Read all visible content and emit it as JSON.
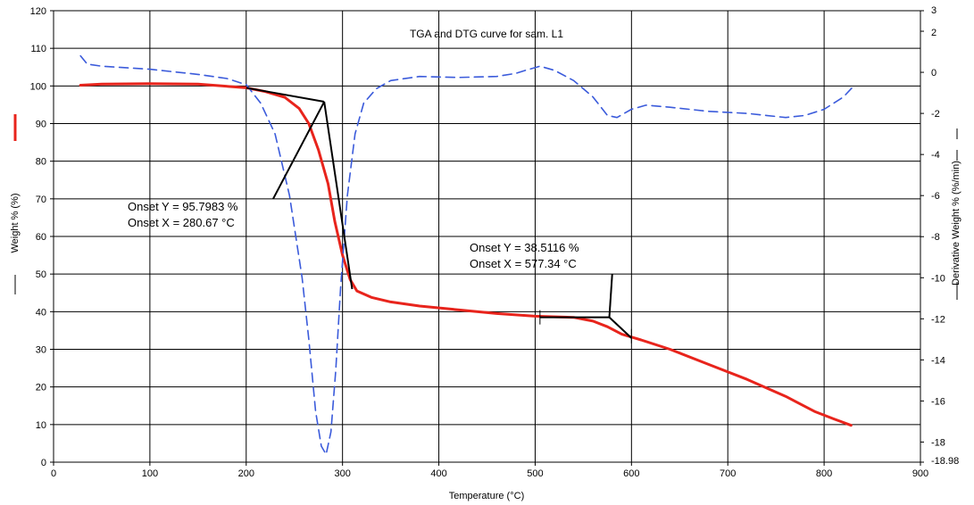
{
  "chart_data": {
    "type": "line",
    "title": "TGA and DTG curve for sam. L1",
    "xlabel": "Temperature (°C)",
    "ylabel": "Weight % (%)",
    "y2label": "Derivative Weight % (%/min)",
    "xlim": [
      0,
      900
    ],
    "ylim": [
      0,
      120
    ],
    "y2lim": [
      -18.98,
      3
    ],
    "x_ticks": [
      "0",
      "100",
      "200",
      "300",
      "400",
      "500",
      "600",
      "700",
      "800",
      "900"
    ],
    "y_ticks": [
      "0",
      "10",
      "20",
      "30",
      "40",
      "50",
      "60",
      "70",
      "80",
      "90",
      "100",
      "110",
      "120"
    ],
    "y2_ticks": [
      "3",
      "2",
      "0",
      "-2",
      "-4",
      "-6",
      "-8",
      "-10",
      "-12",
      "-14",
      "-16",
      "-18",
      "-18.98"
    ],
    "grid": true,
    "series": [
      {
        "axis": "left",
        "color": "#e8241c",
        "style": "solid",
        "points": [
          [
            28,
            100.2
          ],
          [
            50,
            100.5
          ],
          [
            100,
            100.6
          ],
          [
            150,
            100.5
          ],
          [
            200,
            99.5
          ],
          [
            220,
            98.5
          ],
          [
            240,
            97
          ],
          [
            255,
            94
          ],
          [
            265,
            90
          ],
          [
            275,
            83
          ],
          [
            285,
            74
          ],
          [
            292,
            64
          ],
          [
            300,
            55
          ],
          [
            308,
            48.5
          ],
          [
            315,
            45.5
          ],
          [
            330,
            43.8
          ],
          [
            350,
            42.6
          ],
          [
            380,
            41.5
          ],
          [
            420,
            40.5
          ],
          [
            460,
            39.5
          ],
          [
            500,
            38.8
          ],
          [
            540,
            38.5
          ],
          [
            560,
            37.5
          ],
          [
            575,
            36
          ],
          [
            590,
            34
          ],
          [
            610,
            32.5
          ],
          [
            640,
            30
          ],
          [
            680,
            26
          ],
          [
            720,
            22
          ],
          [
            760,
            17.5
          ],
          [
            790,
            13.5
          ],
          [
            810,
            11.5
          ],
          [
            828,
            9.8
          ]
        ]
      },
      {
        "axis": "right",
        "color": "#3b5bdb",
        "style": "dashed",
        "points": [
          [
            28,
            0.8
          ],
          [
            35,
            0.4
          ],
          [
            50,
            0.3
          ],
          [
            100,
            0.15
          ],
          [
            150,
            -0.1
          ],
          [
            180,
            -0.3
          ],
          [
            200,
            -0.6
          ],
          [
            215,
            -1.5
          ],
          [
            230,
            -3
          ],
          [
            245,
            -6
          ],
          [
            258,
            -10
          ],
          [
            265,
            -13
          ],
          [
            272,
            -16.5
          ],
          [
            278,
            -18.2
          ],
          [
            283,
            -18.6
          ],
          [
            288,
            -17.5
          ],
          [
            293,
            -14.5
          ],
          [
            298,
            -10.5
          ],
          [
            305,
            -6
          ],
          [
            313,
            -3
          ],
          [
            322,
            -1.5
          ],
          [
            335,
            -0.8
          ],
          [
            350,
            -0.4
          ],
          [
            380,
            -0.2
          ],
          [
            420,
            -0.25
          ],
          [
            460,
            -0.2
          ],
          [
            480,
            -0.05
          ],
          [
            490,
            0.1
          ],
          [
            505,
            0.3
          ],
          [
            520,
            0.1
          ],
          [
            540,
            -0.4
          ],
          [
            560,
            -1.2
          ],
          [
            575,
            -2.1
          ],
          [
            585,
            -2.2
          ],
          [
            600,
            -1.8
          ],
          [
            615,
            -1.6
          ],
          [
            640,
            -1.7
          ],
          [
            680,
            -1.9
          ],
          [
            720,
            -2.0
          ],
          [
            740,
            -2.1
          ],
          [
            760,
            -2.2
          ],
          [
            780,
            -2.1
          ],
          [
            800,
            -1.8
          ],
          [
            820,
            -1.2
          ],
          [
            830,
            -0.7
          ]
        ]
      }
    ],
    "annotations": [
      {
        "lines": [
          "Onset Y = 95.7983 %",
          "Onset X = 280.67 °C"
        ]
      },
      {
        "lines": [
          "Onset Y = 38.5116 %",
          "Onset X = 577.34 °C"
        ]
      }
    ]
  }
}
